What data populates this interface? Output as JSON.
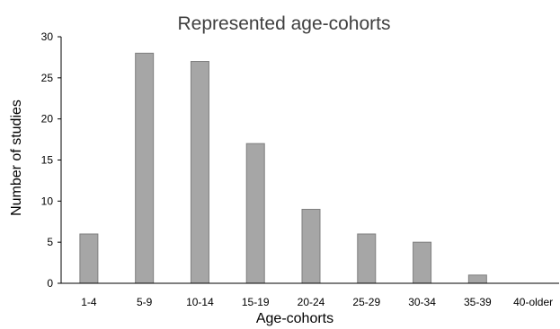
{
  "chart_data": {
    "type": "bar",
    "title": "Represented age-cohorts",
    "xlabel": "Age-cohorts",
    "ylabel": "Number of studies",
    "categories": [
      "1-4",
      "5-9",
      "10-14",
      "15-19",
      "20-24",
      "25-29",
      "30-34",
      "35-39",
      "40-older"
    ],
    "values": [
      6,
      28,
      27,
      17,
      9,
      6,
      5,
      1,
      0
    ],
    "ylim": [
      0,
      30
    ],
    "yticks": [
      0,
      5,
      10,
      15,
      20,
      25,
      30
    ],
    "grid": false,
    "legend": "none",
    "bar_color": "#a6a6a6",
    "bar_edge_color": "#7f7f7f"
  }
}
